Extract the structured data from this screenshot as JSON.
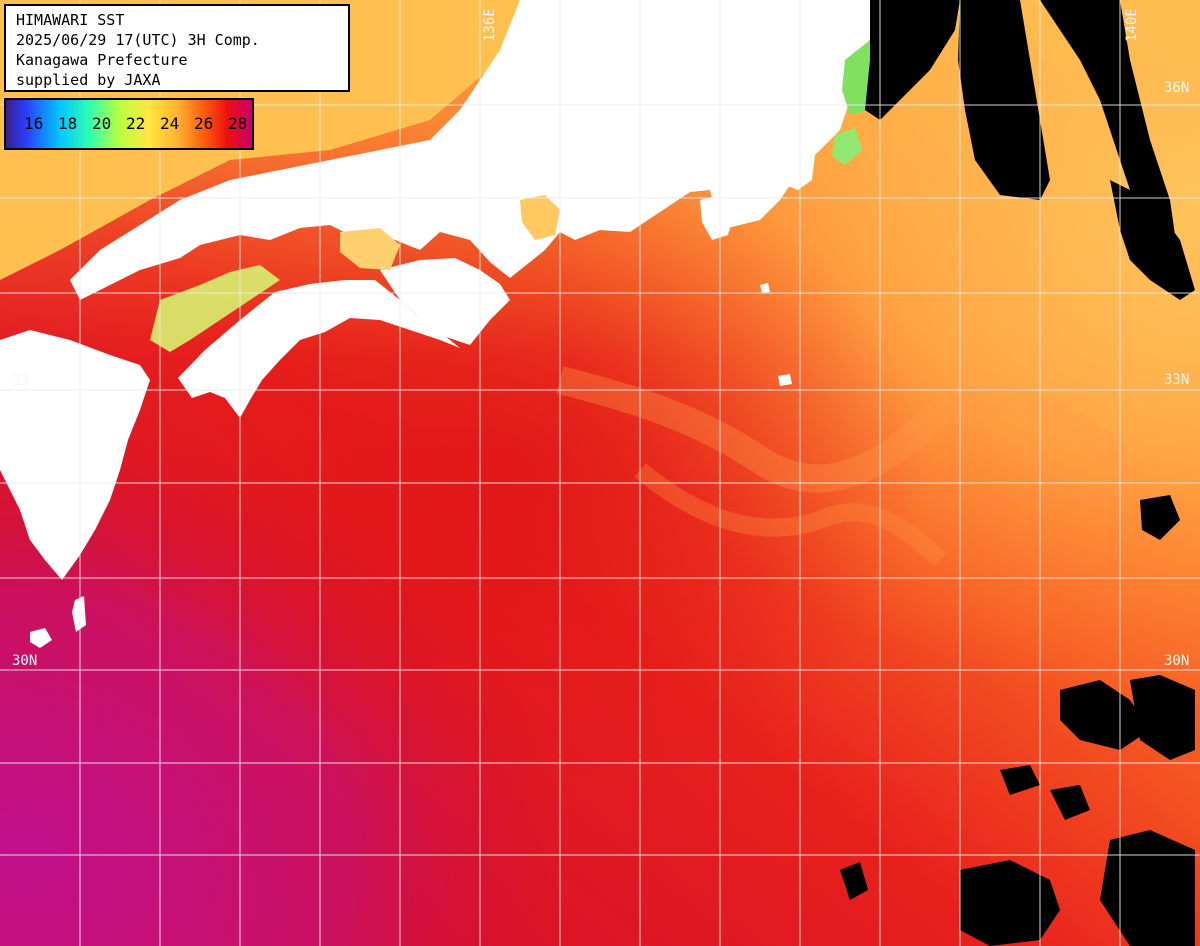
{
  "info": {
    "lines": [
      "HIMAWARI SST",
      "2025/06/29 17(UTC) 3H Comp.",
      "Kanagawa Prefecture",
      "supplied by JAXA"
    ]
  },
  "legend": {
    "values": [
      "16",
      "18",
      "20",
      "22",
      "24",
      "26",
      "28"
    ]
  },
  "grid_labels": {
    "lat_36": "36N",
    "lat_33_left": "33",
    "lat_33": "33N",
    "lat_30_left": "30N",
    "lat_30_right": "30N",
    "lon_136": "136E",
    "lon_140": "140E"
  },
  "colors": {
    "land": "#ffffff",
    "cloud": "#000000",
    "sst_28": "#d8101a",
    "sst_27": "#f0401a",
    "sst_26": "#ff7a28",
    "sst_24": "#ffb84a",
    "sst_22": "#ffd870",
    "sst_20": "#b8f070",
    "sst_29": "#c0108a",
    "grid": "#e8e8e8"
  }
}
